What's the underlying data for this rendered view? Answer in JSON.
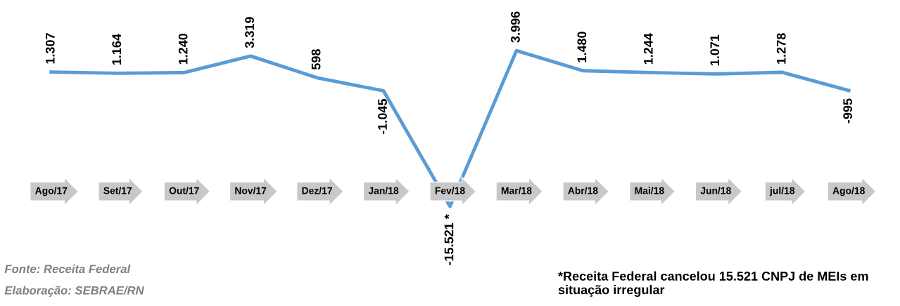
{
  "chart_data": {
    "type": "line",
    "categories": [
      "Ago/17",
      "Set/17",
      "Out/17",
      "Nov/17",
      "Dez/17",
      "Jan/18",
      "Fev/18",
      "Mar/18",
      "Abr/18",
      "Mai/18",
      "Jun/18",
      "jul/18",
      "Ago/18"
    ],
    "series": [
      {
        "color": "#5b9bd5",
        "values": [
          1307,
          1164,
          1240,
          3319,
          598,
          -1045,
          -15521,
          3996,
          1480,
          1244,
          1071,
          1278,
          -995
        ],
        "value_labels": [
          "1.307",
          "1.164",
          "1.240",
          "3.319",
          "598",
          "-1.045",
          "-15.521 *",
          "3.996",
          "1.480",
          "1.244",
          "1.071",
          "1.278",
          "-995"
        ]
      }
    ],
    "tick_labels": "x",
    "grid": false,
    "legend": false,
    "marker": "none",
    "line_style": "solid",
    "annotations": [
      "Fonte: Receita Federal",
      "Elaboração: SEBRAE/RN",
      "*Receita Federal cancelou 15.521 CNPJ de MEIs em situação irregular"
    ]
  }
}
